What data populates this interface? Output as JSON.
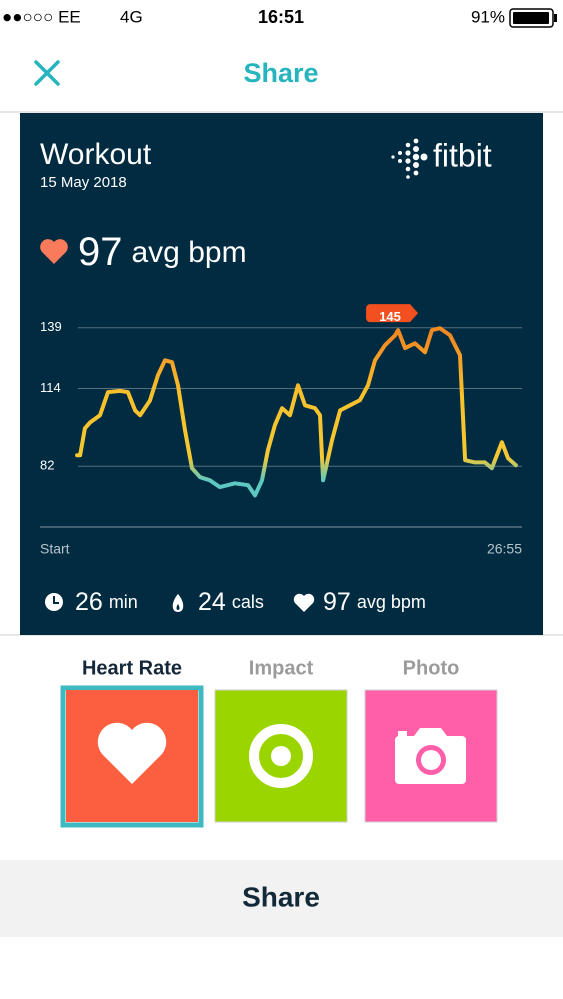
{
  "status_bar": {
    "carrier": "●●○○○ EE",
    "network": "4G",
    "time": "16:51",
    "battery": "91%"
  },
  "header": {
    "title": "Share"
  },
  "card": {
    "title": "Workout",
    "date": "15 May 2018",
    "brand": "fitbit",
    "avg_hr": {
      "value": 97,
      "unit": "avg bpm"
    },
    "stats": [
      {
        "value": 26,
        "unit": "min"
      },
      {
        "value": 24,
        "unit": "cals"
      },
      {
        "value": 97,
        "unit": "avg bpm"
      }
    ]
  },
  "chart_data": {
    "type": "line",
    "x": [
      2.07,
      2.24,
      2.51,
      2.79,
      3.35,
      3.8,
      4.47,
      4.91,
      5.31,
      5.59,
      6.14,
      6.59,
      6.98,
      7.37,
      7.71,
      8.1,
      8.49,
      8.94,
      9.49,
      10.05,
      10.89,
      11.62,
      12.01,
      12.4,
      12.73,
      13.12,
      13.52,
      13.96,
      14.41,
      14.8,
      15.36,
      15.64,
      15.81,
      16.0,
      16.31,
      16.76,
      17.31,
      17.87,
      18.32,
      18.71,
      19.27,
      19.83,
      20.0,
      20.39,
      20.94,
      21.5,
      21.89,
      22.34,
      22.9,
      23.46,
      23.74,
      24.29,
      24.85,
      25.24,
      25.8,
      26.14,
      26.58
    ],
    "values": [
      86.5,
      86.5,
      97.6,
      100,
      103,
      112.5,
      113,
      112.5,
      105,
      103,
      109,
      119.5,
      125.6,
      124.8,
      115.3,
      96.8,
      81.2,
      77.5,
      76.2,
      73.4,
      75,
      74.2,
      70,
      76.2,
      88.6,
      98.9,
      105.9,
      103,
      115.3,
      107.1,
      105.9,
      103,
      76.2,
      82.4,
      92.7,
      105,
      107.1,
      109.2,
      115.3,
      125.6,
      131.8,
      135.9,
      138,
      130.6,
      132.6,
      128.9,
      138,
      138.8,
      135.9,
      127.7,
      84.5,
      83.6,
      83.6,
      81.2,
      91.9,
      85.3,
      82.4
    ],
    "xlim": [
      0,
      26.92
    ],
    "ylim": [
      57,
      150
    ],
    "yticks": [
      82,
      114,
      139
    ],
    "xticks": [
      {
        "value": 0,
        "label": "Start"
      },
      {
        "value": 26.92,
        "label": "26:55"
      }
    ],
    "grid": true,
    "peak": {
      "x": 19.55,
      "value": 145
    },
    "color_stops": [
      {
        "value": 76,
        "color": "#5ec9c2"
      },
      {
        "value": 86,
        "color": "#f6c832"
      },
      {
        "value": 112,
        "color": "#f7c12c"
      },
      {
        "value": 135,
        "color": "#f28a22"
      }
    ]
  },
  "tabs": [
    {
      "label": "Heart Rate",
      "selected": true,
      "color": "#fc5f3f"
    },
    {
      "label": "Impact",
      "selected": false,
      "color": "#9ad500"
    },
    {
      "label": "Photo",
      "selected": false,
      "color": "#ff5fa9"
    }
  ],
  "share_button": "Share"
}
